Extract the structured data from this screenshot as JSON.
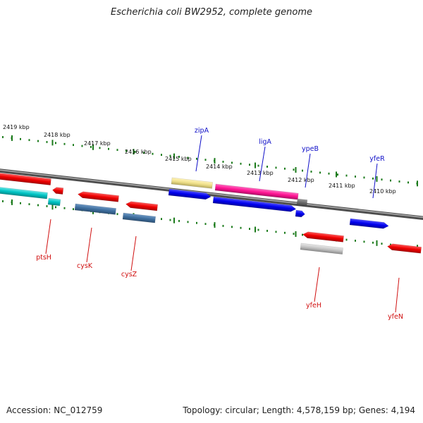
{
  "title": "Escherichia coli BW2952, complete genome",
  "accession": "Accession: NC_012759",
  "summary": "Topology: circular; Length: 4,578,159 bp; Genes: 4,194",
  "colors": {
    "backbone": "#7a7a7a",
    "ticks": "#1a7a1a",
    "label_top": "#1010c8",
    "label_bottom": "#d01010"
  },
  "scale_labels": [
    "2419 kbp",
    "2418 kbp",
    "2417 kbp",
    "2416 kbp",
    "2415 kbp",
    "2414 kbp",
    "2413 kbp",
    "2412 kbp",
    "2411 kbp",
    "2410 kbp"
  ],
  "genes_top": [
    "zipA",
    "ligA",
    "ypeB",
    "yfeR"
  ],
  "genes_bottom": [
    "ptsH",
    "cysK",
    "cysZ",
    "yfeH",
    "yfeN"
  ]
}
